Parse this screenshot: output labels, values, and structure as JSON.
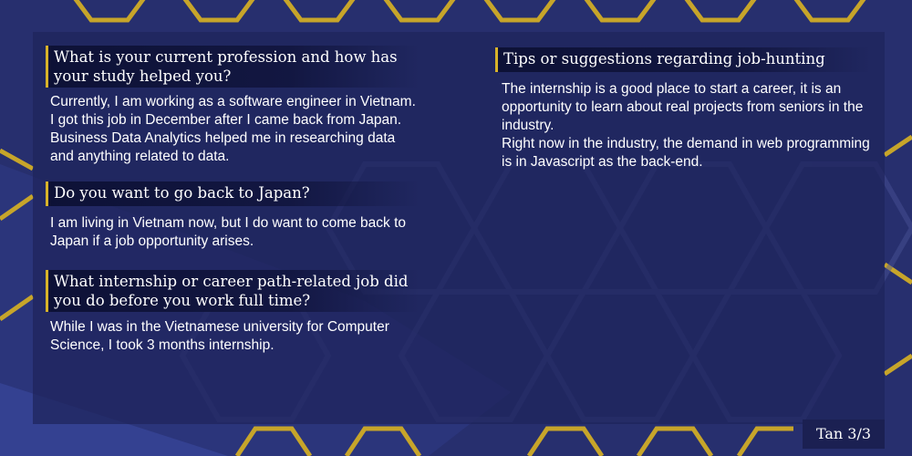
{
  "colors": {
    "background": "#272f6e",
    "panel": "#1e245c",
    "accent_gold": "#d8b32a",
    "text": "#ffffff"
  },
  "decoration": "hexagon-pattern",
  "left_column": [
    {
      "question": "What is your current profession and how has your study helped you?",
      "answer": "Currently, I am working as a software engineer in Vietnam. I got this job in December after I came back from Japan. Business Data Analytics helped me in researching data and anything related to data."
    },
    {
      "question": "Do you want to go back to Japan?",
      "answer": "I am living in Vietnam now, but I do want to come back to Japan if a job opportunity arises."
    },
    {
      "question": "What internship or career path-related job did you do before you work full time?",
      "answer": "While I was in the Vietnamese university for Computer Science, I took 3 months internship."
    }
  ],
  "right_column": {
    "heading": "Tips or suggestions regarding job-hunting",
    "paragraphs": [
      "The internship is a good place to start a career, it is an opportunity to learn about real projects from seniors in the industry.",
      "Right now in the industry, the demand in web programming is in Javascript as the back-end."
    ]
  },
  "footer": {
    "page_label": "Tan 3/3"
  }
}
